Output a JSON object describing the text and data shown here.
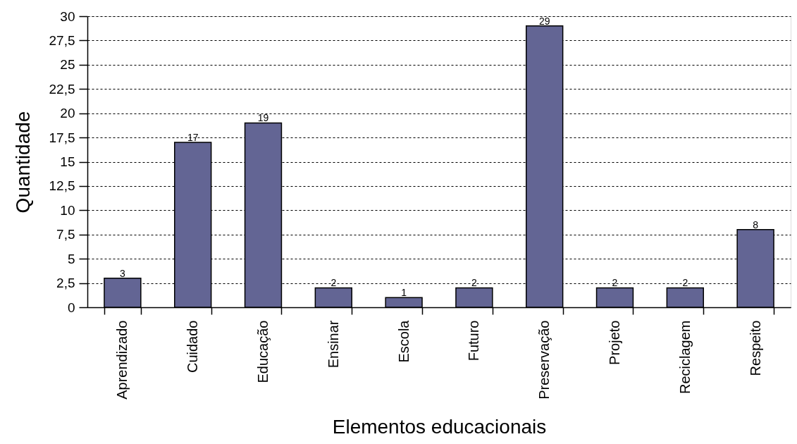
{
  "chart_data": {
    "type": "bar",
    "xlabel": "Elementos educacionais",
    "ylabel": "Quantidade",
    "categories": [
      "Aprendizado",
      "Cuidado",
      "Educação",
      "Ensinar",
      "Escola",
      "Futuro",
      "Preservação",
      "Projeto",
      "Reciclagem",
      "Respeito"
    ],
    "values": [
      3,
      17,
      19,
      2,
      1,
      2,
      29,
      2,
      2,
      8
    ],
    "color": "#636594",
    "ylim": [
      0,
      30
    ],
    "yticks": [
      0,
      {
        "value": 2.5,
        "label": "2,5"
      },
      5,
      {
        "value": 7.5,
        "label": "7,5"
      },
      10,
      {
        "value": 12.5,
        "label": "12,5"
      },
      15,
      {
        "value": 17.5,
        "label": "17,5"
      },
      20,
      {
        "value": 22.5,
        "label": "22,5"
      },
      25,
      {
        "value": 27.5,
        "label": "27,5"
      },
      30
    ],
    "grid": "y",
    "data_labels": true
  }
}
